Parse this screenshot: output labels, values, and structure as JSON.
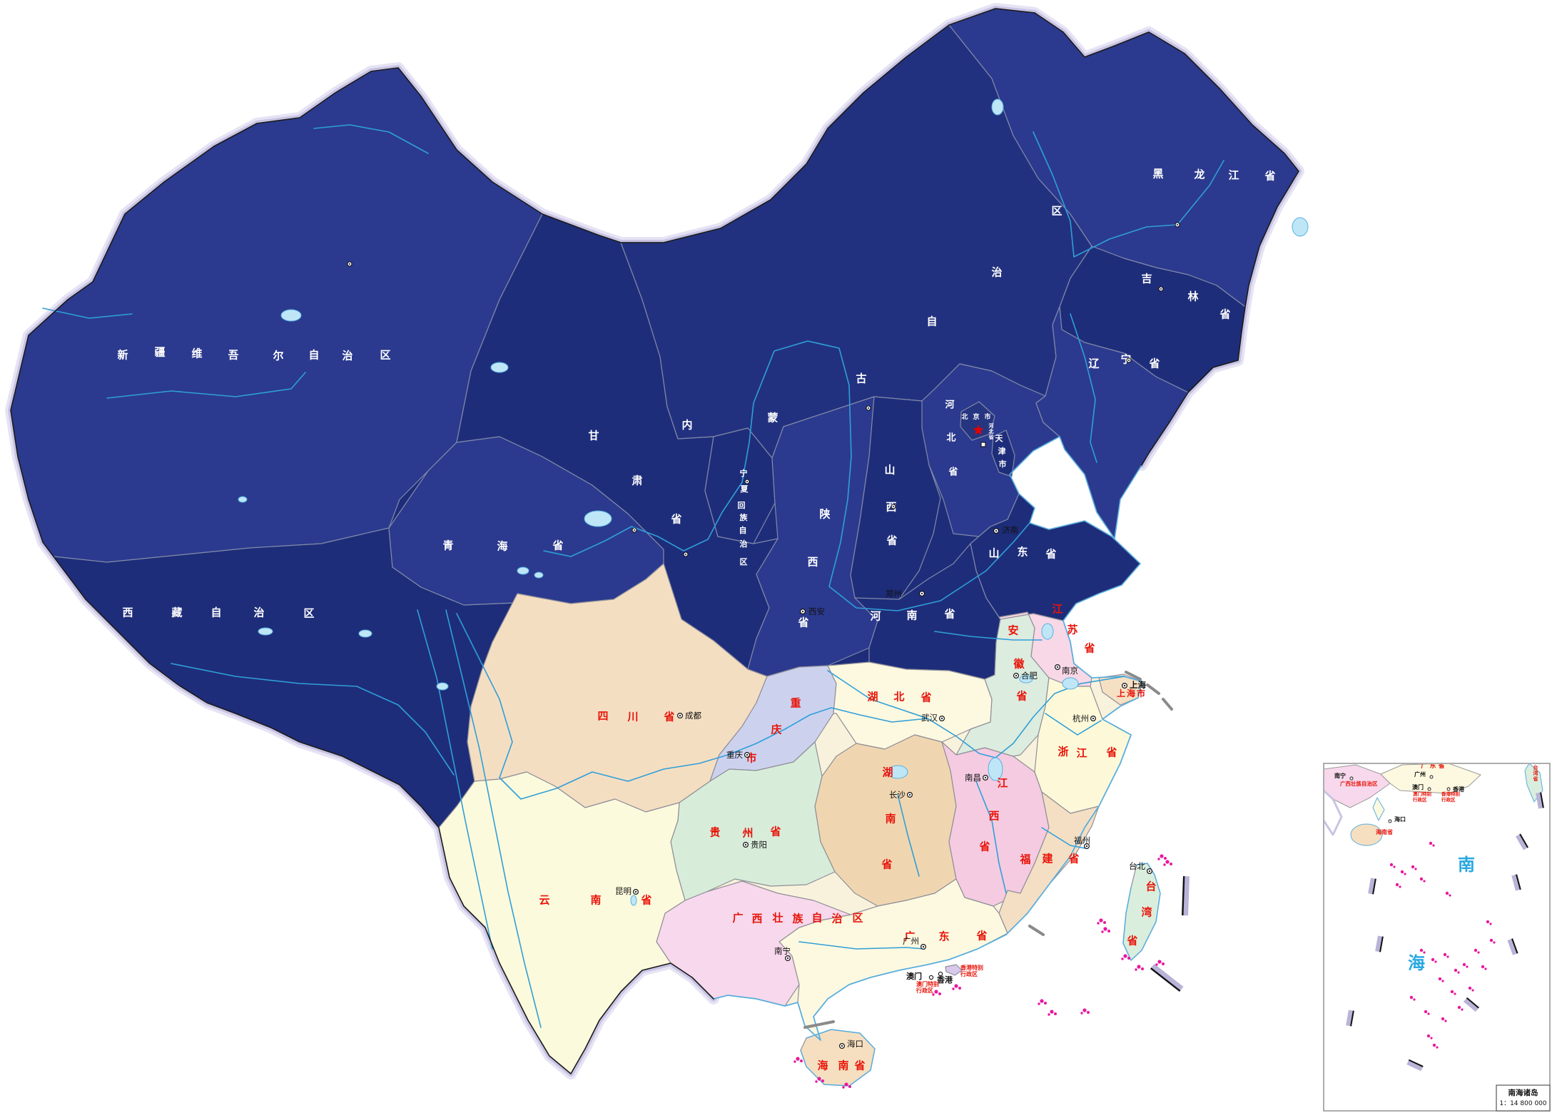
{
  "map": {
    "kind": "china-provinces-map",
    "colors": {
      "sea": "#ffffff",
      "north_dark": "#1e2d7a",
      "north_light": "#2b3a8e",
      "glow_outer": "#e6e3f4",
      "glow_inner": "#c9c4e4",
      "intl_border": "#1a1a1a",
      "province_border_dark": "#8089a8",
      "province_border_light": "#8f8f98",
      "river": "#2f9fd8",
      "lake_fill": "#bfe6f7",
      "lake_stroke": "#58b0e0",
      "label_north": "#ffffff",
      "label_south": "#e8140a",
      "city_text": "#111111",
      "star": "#e60000",
      "islands_magenta": "#e8189e",
      "dash_bar": "#b9b3d8",
      "coast_blue": "#5aaede"
    },
    "provinces": [
      {
        "id": "xinjiang",
        "label": "新疆维吾尔自治区",
        "fill": "#2b3a8e",
        "label_color": "#ffffff",
        "capital": null
      },
      {
        "id": "xizang",
        "label": "西藏自治区",
        "fill": "#1e2d7a",
        "label_color": "#ffffff",
        "capital": null
      },
      {
        "id": "qinghai",
        "label": "青海省",
        "fill": "#2b3a8e",
        "label_color": "#ffffff",
        "capital": null
      },
      {
        "id": "gansu",
        "label": "甘肃省",
        "fill": "#1e2d7a",
        "label_color": "#ffffff",
        "capital": null
      },
      {
        "id": "neimenggu",
        "label": "内蒙古自治区",
        "fill": "#22317f",
        "label_color": "#ffffff",
        "capital": null
      },
      {
        "id": "ningxia",
        "label": "宁夏回族自治区",
        "fill": "#1e2d7a",
        "label_color": "#ffffff",
        "capital": null
      },
      {
        "id": "shaanxi",
        "label": "陕西省",
        "fill": "#2b3a8e",
        "label_color": "#ffffff",
        "capital": {
          "name": "西安"
        }
      },
      {
        "id": "shanxi",
        "label": "山西省",
        "fill": "#1e2d7a",
        "label_color": "#ffffff",
        "capital": null
      },
      {
        "id": "hebei",
        "label": "河北省",
        "fill": "#2b3a8e",
        "label_color": "#ffffff",
        "capital": null,
        "minilabel": "河北省"
      },
      {
        "id": "beijing",
        "label": "北京市",
        "fill": "#26357f",
        "label_color": "#ffffff",
        "capital": null
      },
      {
        "id": "tianjin",
        "label": "天津市",
        "fill": "#1e2d7a",
        "label_color": "#ffffff",
        "capital": null
      },
      {
        "id": "shandong",
        "label": "山东省",
        "fill": "#1e2d7a",
        "label_color": "#ffffff",
        "capital": {
          "name": "济南"
        }
      },
      {
        "id": "henan",
        "label": "河南省",
        "fill": "#1e2d7a",
        "label_color": "#ffffff",
        "capital": {
          "name": "郑州"
        }
      },
      {
        "id": "heilongjiang",
        "label": "黑龙江省",
        "fill": "#2b3a8e",
        "label_color": "#ffffff",
        "capital": null
      },
      {
        "id": "jilin",
        "label": "吉林省",
        "fill": "#1e2d7a",
        "label_color": "#ffffff",
        "capital": null
      },
      {
        "id": "liaoning",
        "label": "辽宁省",
        "fill": "#2b3a8e",
        "label_color": "#ffffff",
        "capital": null
      },
      {
        "id": "sichuan",
        "label": "四川省",
        "fill": "#f4dec2",
        "label_color": "#e8140a",
        "capital": {
          "name": "成都"
        }
      },
      {
        "id": "chongqing",
        "label": "重庆市",
        "fill": "#ccd2ee",
        "label_color": "#e8140a",
        "capital": {
          "name": "重庆"
        }
      },
      {
        "id": "hubei",
        "label": "湖北省",
        "fill": "#fdf8e0",
        "label_color": "#e8140a",
        "capital": {
          "name": "武汉"
        }
      },
      {
        "id": "hunan",
        "label": "湖南省",
        "fill": "#f0d6b0",
        "label_color": "#e8140a",
        "capital": {
          "name": "长沙"
        }
      },
      {
        "id": "jiangxi",
        "label": "江西省",
        "fill": "#f5cbe1",
        "label_color": "#e8140a",
        "capital": {
          "name": "南昌"
        }
      },
      {
        "id": "anhui",
        "label": "安徽省",
        "fill": "#dcecdf",
        "label_color": "#e8140a",
        "capital": {
          "name": "合肥"
        }
      },
      {
        "id": "jiangsu",
        "label": "江苏省",
        "fill": "#f8d8e6",
        "label_color": "#e8140a",
        "capital": {
          "name": "南京"
        }
      },
      {
        "id": "shanghai",
        "label": "上海市",
        "fill": "#f6e0c4",
        "label_color": "#e8140a",
        "capital": {
          "name": "上海"
        }
      },
      {
        "id": "zhejiang",
        "label": "浙江省",
        "fill": "#fdf9d8",
        "label_color": "#e8140a",
        "capital": {
          "name": "杭州"
        }
      },
      {
        "id": "fujian",
        "label": "福建省",
        "fill": "#f4dfc4",
        "label_color": "#e8140a",
        "capital": {
          "name": "福州"
        }
      },
      {
        "id": "taiwan",
        "label": "台湾省",
        "fill": "#daeedd",
        "label_color": "#e8140a",
        "capital": {
          "name": "台北"
        }
      },
      {
        "id": "guangdong",
        "label": "广东省",
        "fill": "#fdf9e0",
        "label_color": "#e8140a",
        "capital": {
          "name": "广州"
        }
      },
      {
        "id": "guangxi",
        "label": "广西壮族自治区",
        "fill": "#f8d8ec",
        "label_color": "#e8140a",
        "capital": {
          "name": "南宁"
        }
      },
      {
        "id": "guizhou",
        "label": "贵州省",
        "fill": "#d8ecda",
        "label_color": "#e8140a",
        "capital": {
          "name": "贵阳"
        }
      },
      {
        "id": "yunnan",
        "label": "云南省",
        "fill": "#fcfadc",
        "label_color": "#e8140a",
        "capital": {
          "name": "昆明"
        }
      },
      {
        "id": "hainan",
        "label": "海南省",
        "fill": "#f6dfc0",
        "label_color": "#e8140a",
        "capital": {
          "name": "海口"
        }
      },
      {
        "id": "hongkong",
        "label": "香港",
        "fill": "#d8c8ec",
        "label_color": "#e8140a",
        "capital": null,
        "sar_lines": [
          "香港特别",
          "行政区"
        ]
      },
      {
        "id": "aomen",
        "label": "澳门",
        "fill": "#d8c8ec",
        "label_color": "#e8140a",
        "capital": null,
        "sar_lines": [
          "澳门特别",
          "行政区"
        ]
      }
    ],
    "inset": {
      "title": "南海诸岛",
      "scale_text": "1：14 800 000",
      "sea_name_chars": [
        "南",
        "海"
      ],
      "labels": [
        {
          "id": "i-nanning",
          "text": "南宁",
          "color": "#111111"
        },
        {
          "id": "i-guangxi",
          "text": "广西壮族自治区",
          "color": "#e8140a"
        },
        {
          "id": "i-guangdong",
          "text": "广 东 省",
          "color": "#e8140a"
        },
        {
          "id": "i-guangzhou",
          "text": "广州",
          "color": "#111111"
        },
        {
          "id": "i-aomen",
          "text": "澳门",
          "color": "#111111"
        },
        {
          "id": "i-xianggang",
          "text": "香港",
          "color": "#111111"
        },
        {
          "id": "i-aomen-sar",
          "text": "澳门特别 行政区",
          "color": "#e8140a"
        },
        {
          "id": "i-xianggang-sar",
          "text": "香港特别 行政区",
          "color": "#e8140a"
        },
        {
          "id": "i-haikou",
          "text": "海口",
          "color": "#111111"
        },
        {
          "id": "i-hainan",
          "text": "海南省",
          "color": "#e8140a"
        },
        {
          "id": "i-taiwan",
          "text": "台湾省",
          "color": "#e8140a"
        }
      ]
    }
  }
}
